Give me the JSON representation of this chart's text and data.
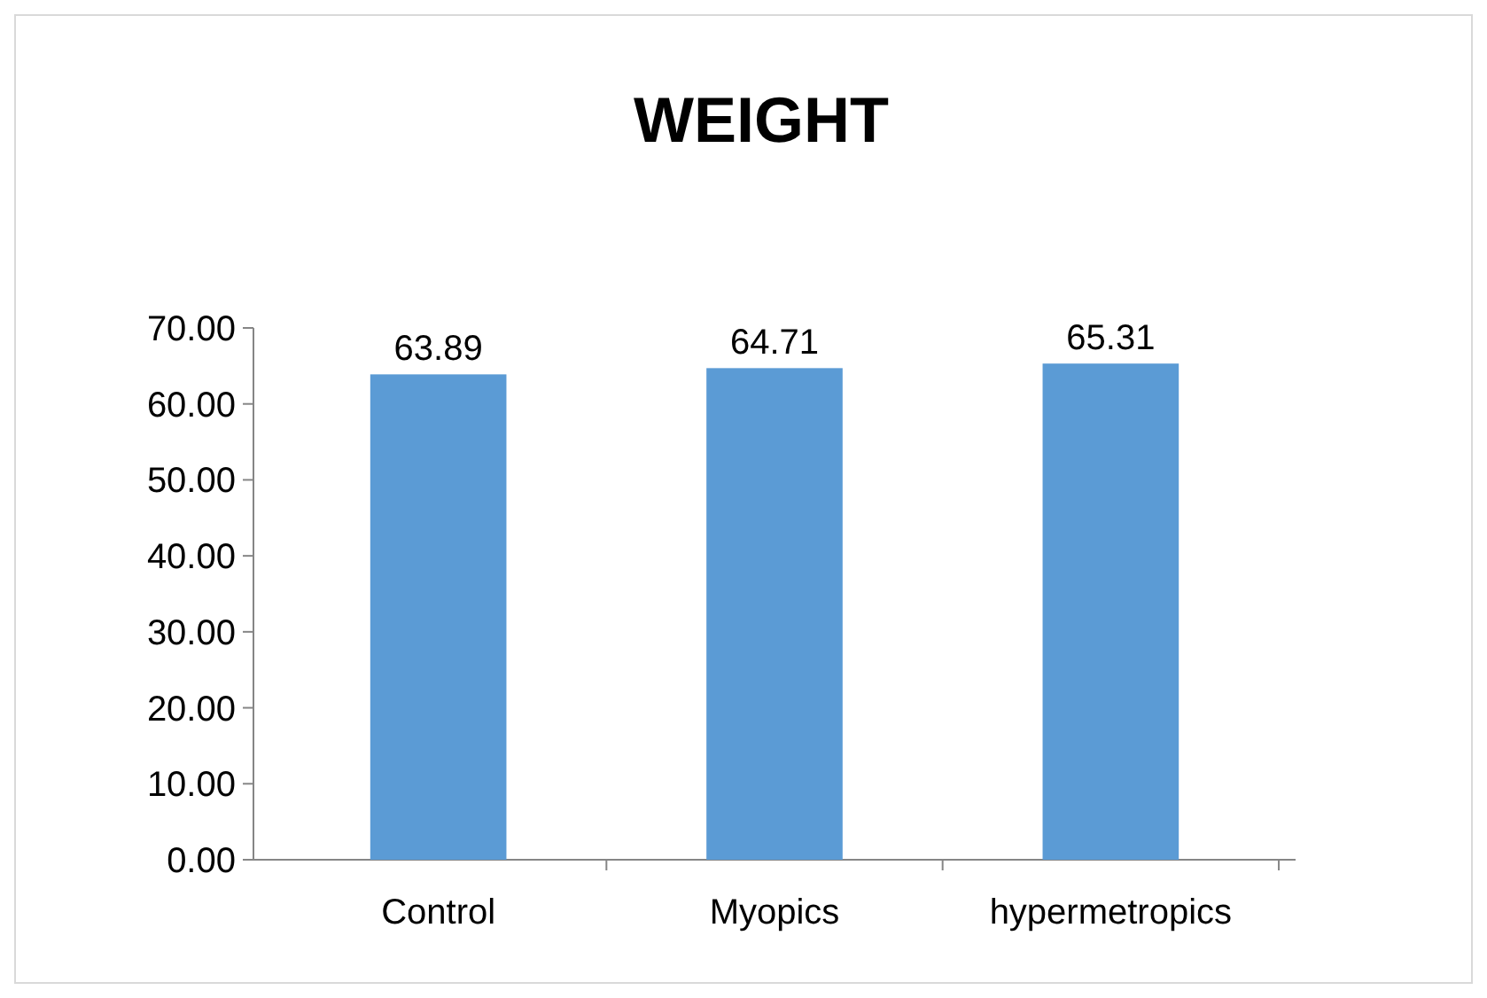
{
  "chart_data": {
    "type": "bar",
    "title": "WEIGHT",
    "categories": [
      "Control",
      "Myopics",
      "hypermetropics"
    ],
    "values": [
      63.89,
      64.71,
      65.31
    ],
    "color": "#5b9bd5",
    "ylim": [
      0,
      70
    ],
    "yticks": [
      {
        "value": 0,
        "label": "0.00"
      },
      {
        "value": 10,
        "label": "10.00"
      },
      {
        "value": 20,
        "label": "20.00"
      },
      {
        "value": 30,
        "label": "30.00"
      },
      {
        "value": 40,
        "label": "40.00"
      },
      {
        "value": 50,
        "label": "50.00"
      },
      {
        "value": 60,
        "label": "60.00"
      },
      {
        "value": 70,
        "label": "70.00"
      }
    ],
    "data_labels": true
  }
}
